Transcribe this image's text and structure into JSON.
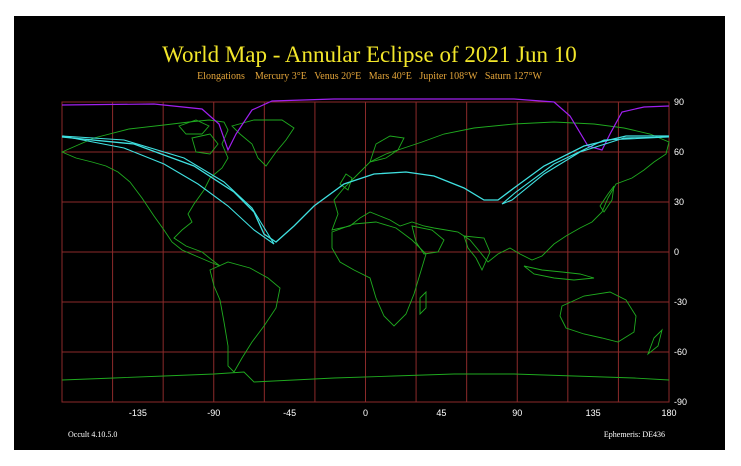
{
  "title": "World Map - Annular Eclipse of 2021 Jun 10",
  "elongations": "Elongations    Mercury 3°E   Venus 20°E   Mars 40°E   Jupiter 108°W   Saturn 127°W",
  "footer_left": "Occult 4.10.5.0",
  "footer_right": "Ephemeris: DE436",
  "map": {
    "lon_range": [
      -180,
      180
    ],
    "lat_range": [
      -90,
      90
    ],
    "lon_ticks": [
      "-135",
      "-90",
      "-45",
      "0",
      "45",
      "90",
      "135",
      "180"
    ],
    "lat_ticks": [
      "90",
      "60",
      "30",
      "0",
      "-30",
      "-60",
      "-90"
    ],
    "grid_color": "#8b2a2a",
    "coast_color": "#1faa1f",
    "path_color": "#3fe0e0",
    "limit_color": "#a020f0"
  }
}
